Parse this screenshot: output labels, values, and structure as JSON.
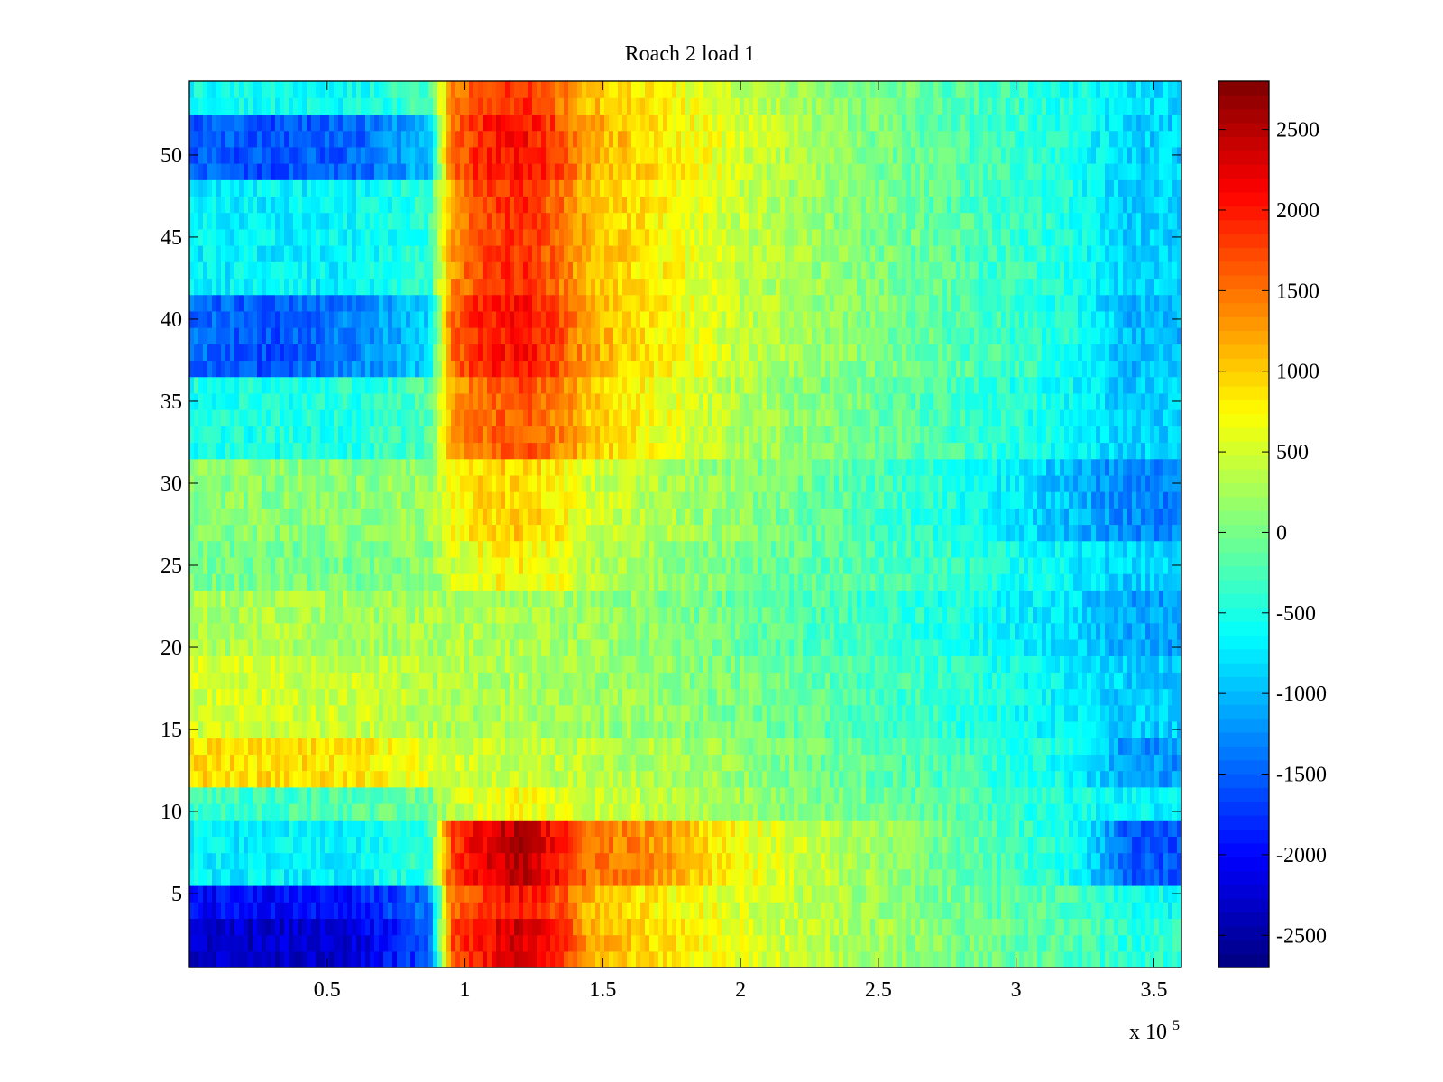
{
  "chart_data": {
    "type": "heatmap",
    "title": "Roach 2 load 1",
    "xlabel": "",
    "ylabel": "",
    "x_exponent_label": "x 10",
    "x_exponent_power": "5",
    "xlim": [
      0,
      3.6
    ],
    "ylim": [
      0.5,
      54.5
    ],
    "x_ticks": [
      0.5,
      1,
      1.5,
      2,
      2.5,
      3,
      3.5
    ],
    "x_tick_labels": [
      "0.5",
      "1",
      "1.5",
      "2",
      "2.5",
      "3",
      "3.5"
    ],
    "y_ticks": [
      5,
      10,
      15,
      20,
      25,
      30,
      35,
      40,
      45,
      50
    ],
    "y_tick_labels": [
      "5",
      "10",
      "15",
      "20",
      "25",
      "30",
      "35",
      "40",
      "45",
      "50"
    ],
    "colorbar": {
      "colormap": "jet",
      "clim": [
        -2700,
        2800
      ],
      "ticks": [
        2500,
        2000,
        1500,
        1000,
        500,
        0,
        -500,
        -1000,
        -1500,
        -2000,
        -2500
      ],
      "tick_labels": [
        "2500",
        "2000",
        "1500",
        "1000",
        "500",
        "0",
        "-500",
        "-1000",
        "-1500",
        "-2000",
        "-2500"
      ]
    },
    "grid": false,
    "rows": 54,
    "x_columns": [
      0,
      0.3,
      0.6,
      0.87,
      0.95,
      1.05,
      1.2,
      1.35,
      1.45,
      1.7,
      2.0,
      2.4,
      2.8,
      3.2,
      3.4,
      3.6
    ],
    "row_profiles": [
      {
        "rows": [
          1,
          2,
          3
        ],
        "values": [
          -2300,
          -2300,
          -2200,
          -1600,
          1700,
          2000,
          2400,
          1900,
          1200,
          900,
          600,
          300,
          0,
          -200,
          -400,
          -400
        ]
      },
      {
        "rows": [
          4,
          5
        ],
        "values": [
          -2000,
          -2000,
          -1900,
          -1400,
          1500,
          1800,
          2100,
          1700,
          1100,
          800,
          550,
          250,
          -50,
          -250,
          -600,
          -600
        ]
      },
      {
        "rows": [
          6,
          7,
          8,
          9
        ],
        "values": [
          -700,
          -700,
          -650,
          -400,
          1700,
          2200,
          2500,
          2000,
          1500,
          1300,
          700,
          300,
          -100,
          -500,
          -1500,
          -1600
        ]
      },
      {
        "rows": [
          10,
          11
        ],
        "values": [
          -300,
          -300,
          -200,
          0,
          400,
          600,
          700,
          600,
          500,
          400,
          200,
          0,
          -200,
          -500,
          -700,
          -700
        ]
      },
      {
        "rows": [
          12,
          13,
          14
        ],
        "values": [
          900,
          900,
          850,
          600,
          500,
          450,
          450,
          400,
          350,
          300,
          150,
          -100,
          -300,
          -600,
          -1200,
          -1200
        ]
      },
      {
        "rows": [
          15,
          16,
          17,
          18,
          19
        ],
        "values": [
          500,
          500,
          450,
          350,
          300,
          300,
          300,
          250,
          200,
          150,
          0,
          -200,
          -400,
          -700,
          -900,
          -900
        ]
      },
      {
        "rows": [
          20,
          21,
          22,
          23
        ],
        "values": [
          300,
          300,
          250,
          250,
          300,
          300,
          300,
          250,
          200,
          100,
          -100,
          -300,
          -500,
          -800,
          -1100,
          -1200
        ]
      },
      {
        "rows": [
          24,
          25,
          26
        ],
        "values": [
          0,
          0,
          0,
          100,
          500,
          700,
          800,
          600,
          400,
          200,
          0,
          -200,
          -400,
          -700,
          -900,
          -900
        ]
      },
      {
        "rows": [
          27,
          28,
          29,
          30,
          31
        ],
        "values": [
          100,
          100,
          100,
          200,
          700,
          900,
          1000,
          800,
          500,
          300,
          100,
          -200,
          -500,
          -1000,
          -1300,
          -1300
        ]
      },
      {
        "rows": [
          32,
          33,
          34,
          35,
          36
        ],
        "values": [
          -500,
          -500,
          -450,
          -200,
          1200,
          1500,
          1700,
          1400,
          1000,
          700,
          300,
          0,
          -300,
          -600,
          -900,
          -900
        ]
      },
      {
        "rows": [
          37,
          38,
          39,
          40,
          41
        ],
        "values": [
          -1400,
          -1600,
          -1300,
          -900,
          1500,
          1900,
          2100,
          1700,
          1200,
          800,
          400,
          100,
          -200,
          -500,
          -1000,
          -1000
        ]
      },
      {
        "rows": [
          42,
          43,
          44,
          45,
          46,
          47,
          48
        ],
        "values": [
          -700,
          -700,
          -650,
          -400,
          1300,
          1700,
          1900,
          1500,
          1100,
          800,
          400,
          100,
          -200,
          -500,
          -900,
          -900
        ]
      },
      {
        "rows": [
          49,
          50,
          51,
          52
        ],
        "values": [
          -1500,
          -1600,
          -1500,
          -1000,
          1500,
          1900,
          2100,
          1700,
          1200,
          900,
          500,
          100,
          -200,
          -500,
          -900,
          -900
        ]
      },
      {
        "rows": [
          53,
          54
        ],
        "values": [
          -600,
          -600,
          -550,
          -300,
          1300,
          1700,
          1900,
          1500,
          1100,
          800,
          400,
          100,
          -200,
          -500,
          -800,
          -800
        ]
      }
    ]
  }
}
